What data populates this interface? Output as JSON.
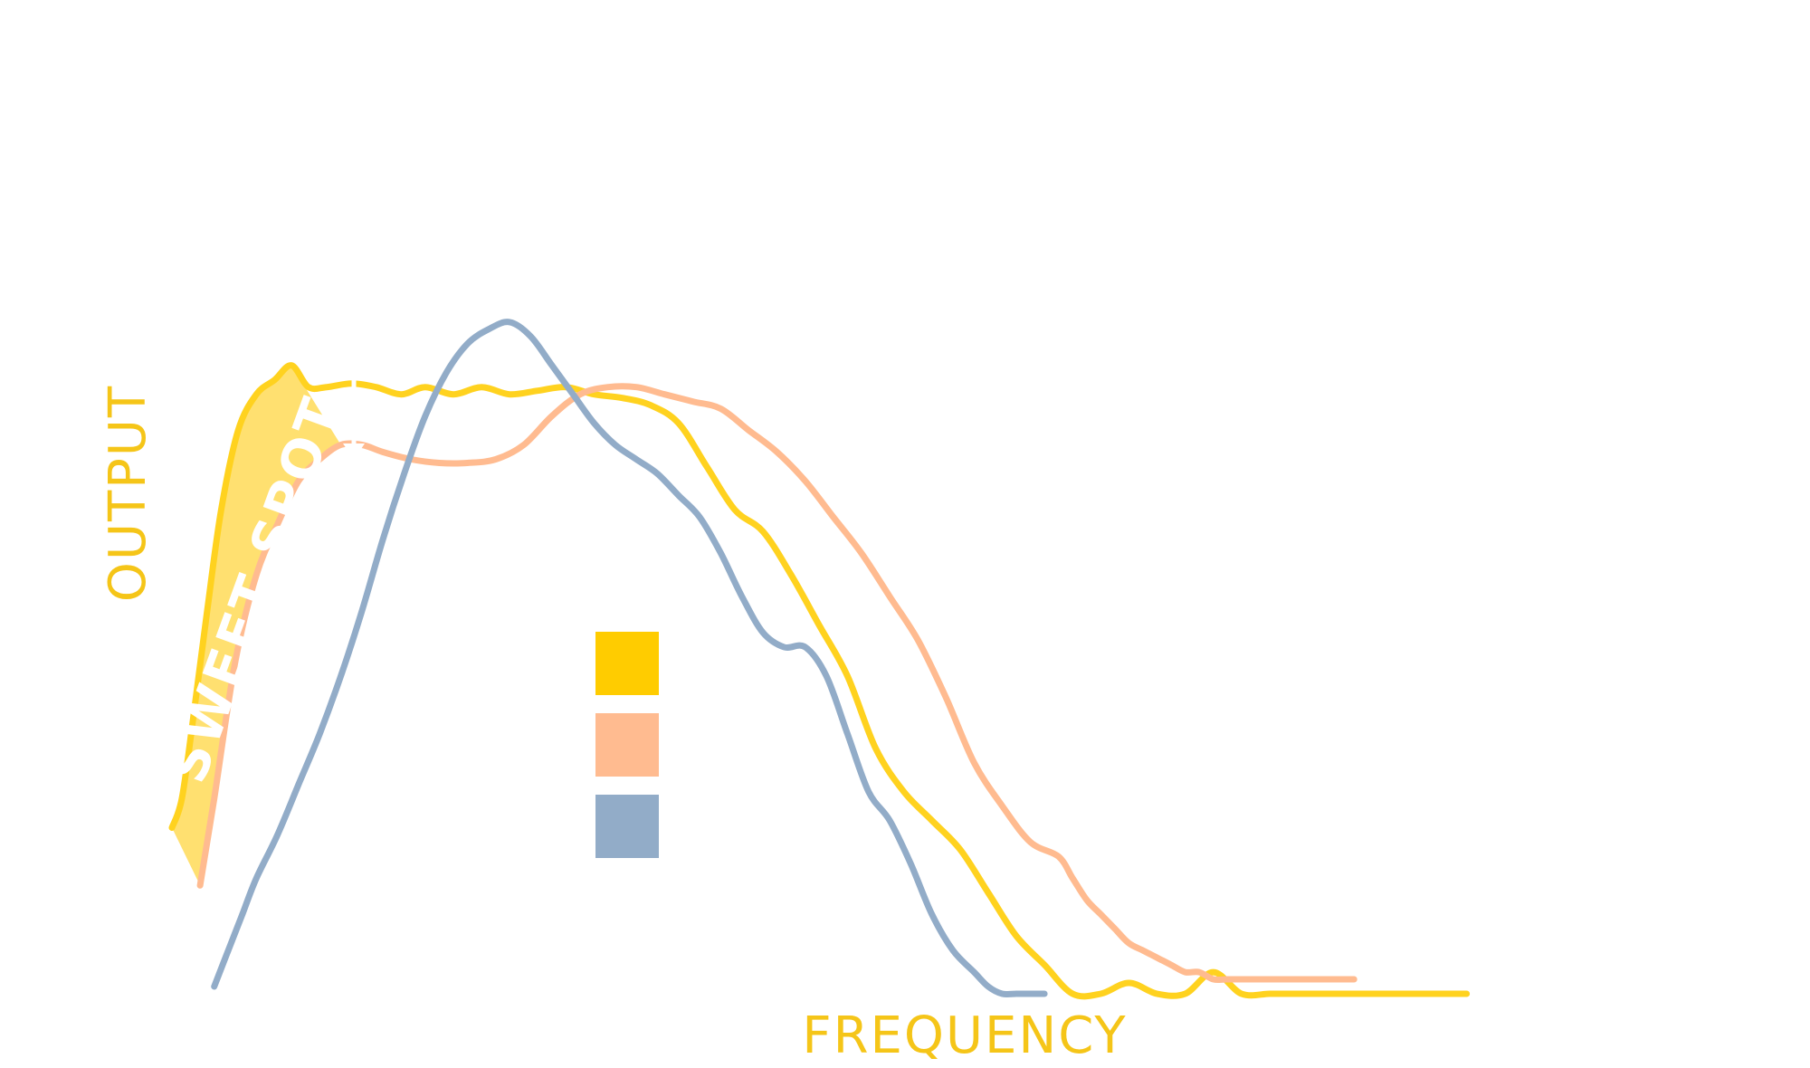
{
  "chart_data": {
    "type": "line",
    "title": "",
    "xlabel": "FREQUENCY",
    "ylabel": "OUTPUT",
    "xlim": [
      0,
      100
    ],
    "ylim": [
      0,
      100
    ],
    "grid": false,
    "legend": {
      "position": "center",
      "entries": [
        {
          "color": "#ffcc00",
          "label": ""
        },
        {
          "color": "#ffbb90",
          "label": ""
        },
        {
          "color": "#92acc8",
          "label": ""
        }
      ]
    },
    "series": [
      {
        "color": "#ffd21f",
        "x": [
          0,
          0.7,
          1.5,
          2.5,
          3.5,
          4.7,
          6,
          7.3,
          8.5,
          9.7,
          11,
          12.8,
          14.5,
          16.3,
          18,
          20,
          22,
          24,
          26,
          28,
          30,
          32,
          34,
          36,
          38,
          40,
          42,
          44,
          46,
          48,
          50,
          52,
          54,
          56,
          58,
          60,
          62,
          64,
          66,
          68,
          70,
          72,
          74,
          76,
          78,
          79.5,
          81,
          82.5,
          83.5,
          84.5,
          85.5,
          87,
          89,
          90.5,
          92
        ],
        "y": [
          23,
          27,
          38,
          53,
          67,
          78,
          83,
          85,
          87,
          84,
          84,
          84.5,
          84,
          83,
          84,
          83,
          84,
          83,
          83.5,
          84,
          83,
          82.5,
          81.5,
          79,
          73,
          67,
          64,
          58,
          51,
          44,
          34,
          28,
          24,
          20,
          14,
          8,
          4,
          0,
          0,
          1.5,
          0,
          0,
          3,
          0,
          0,
          0,
          0,
          0,
          0,
          0,
          0,
          0,
          0,
          0,
          0
        ]
      },
      {
        "color": "#ffbb90",
        "x": [
          2,
          3,
          4.5,
          6,
          7.5,
          9,
          10.5,
          12,
          13.5,
          15,
          17,
          19,
          21,
          23,
          25,
          27,
          29,
          31,
          33,
          35,
          37,
          39,
          41,
          43,
          45,
          47,
          49,
          51,
          53,
          55,
          57,
          59,
          61,
          63,
          64,
          65,
          66,
          67,
          68,
          69,
          70,
          71,
          72,
          73,
          74,
          75,
          77,
          79,
          81,
          82,
          83,
          84
        ],
        "y": [
          15,
          27,
          46,
          58,
          65,
          71,
          74,
          76,
          76,
          75,
          74,
          73.5,
          73.5,
          74,
          76,
          80,
          83,
          84,
          84,
          83,
          82,
          81,
          78,
          75,
          71,
          66,
          61,
          55,
          49,
          41,
          32,
          26,
          21,
          19,
          16,
          13,
          11,
          9,
          7,
          6,
          5,
          4,
          3,
          3,
          2,
          2,
          2,
          2,
          2,
          2,
          2,
          2
        ]
      },
      {
        "color": "#92acc8",
        "x": [
          3,
          4,
          5,
          6,
          7.5,
          9,
          10.5,
          12,
          13.5,
          15,
          16.5,
          18,
          19.5,
          21,
          22.5,
          24,
          25.5,
          27,
          28.5,
          30,
          31.5,
          33,
          34.5,
          36,
          37.5,
          39,
          40.5,
          42,
          43.5,
          45,
          46.5,
          48,
          49.5,
          51,
          52.5,
          54,
          55.5,
          57,
          58,
          59,
          60,
          61,
          62
        ],
        "y": [
          1,
          6,
          11,
          16,
          22,
          29,
          36,
          44,
          53,
          63,
          72,
          80,
          86,
          90,
          92,
          93,
          91,
          87,
          83,
          79,
          76,
          74,
          72,
          69,
          66,
          61,
          55,
          50,
          48,
          48,
          44,
          36,
          28,
          24,
          18,
          11,
          6,
          3,
          1,
          0,
          0,
          0,
          0
        ]
      }
    ],
    "annotations": [
      {
        "text": "SWEET SPOT"
      }
    ],
    "colors": {
      "swatch_yellow": "#ffcc00",
      "swatch_peach": "#ffbb90",
      "swatch_blue": "#92acc8",
      "fill_band": "#ffe070",
      "label_gold": "#f5c518",
      "annotation_white": "#ffffff"
    }
  }
}
